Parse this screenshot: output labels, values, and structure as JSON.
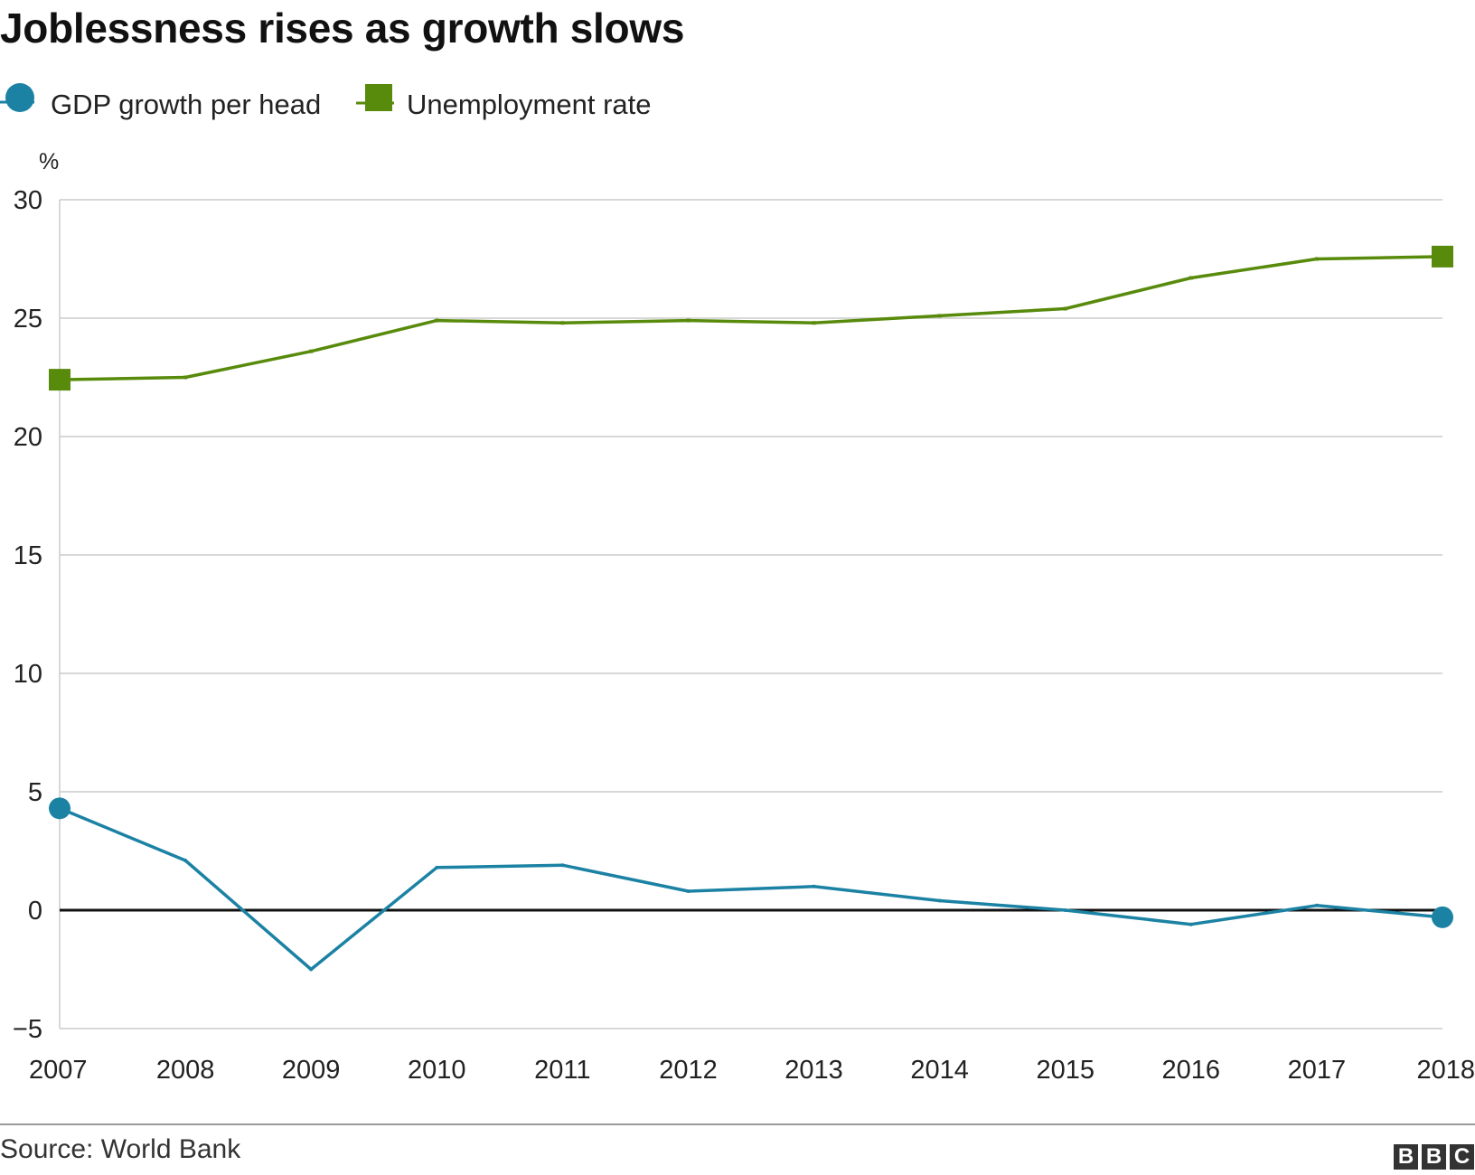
{
  "chart_data": {
    "type": "line",
    "title": "Joblessness rises as growth slows",
    "ylabel": "%",
    "xlabel": "",
    "ylim": [
      -5,
      30
    ],
    "yticks": [
      -5,
      0,
      5,
      10,
      15,
      20,
      25,
      30
    ],
    "ytick_labels": [
      "−5",
      "0",
      "5",
      "10",
      "15",
      "20",
      "25",
      "30"
    ],
    "x": [
      2007,
      2008,
      2009,
      2010,
      2011,
      2012,
      2013,
      2014,
      2015,
      2016,
      2017,
      2018
    ],
    "xtick_labels": [
      "2007",
      "2008",
      "2009",
      "2010",
      "2011",
      "2012",
      "2013",
      "2014",
      "2015",
      "2016",
      "2017",
      "2018"
    ],
    "grid": true,
    "legend_position": "top-left",
    "series": [
      {
        "name": "GDP growth per head",
        "color": "#1b82a4",
        "marker": "circle",
        "values": [
          4.3,
          2.1,
          -2.5,
          1.8,
          1.9,
          0.8,
          1.0,
          0.4,
          0.0,
          -0.6,
          0.2,
          -0.3
        ]
      },
      {
        "name": "Unemployment rate",
        "color": "#588a0b",
        "marker": "square",
        "values": [
          22.4,
          22.5,
          23.6,
          24.9,
          24.8,
          24.9,
          24.8,
          25.1,
          25.4,
          26.7,
          27.5,
          27.6
        ]
      }
    ]
  },
  "footer": {
    "source": "Source: World Bank",
    "logo_letters": [
      "B",
      "B",
      "C"
    ]
  }
}
